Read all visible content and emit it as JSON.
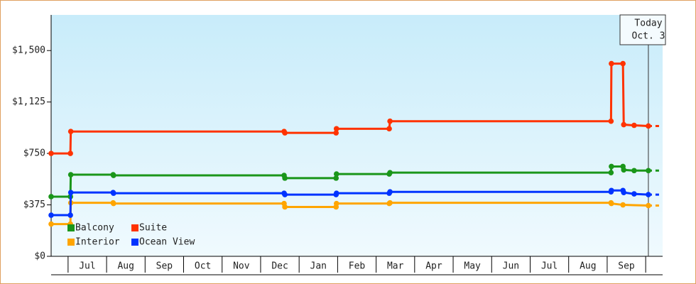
{
  "chart_data": {
    "type": "line",
    "xlim": [
      -0.44,
      15.44
    ],
    "xticks": [
      {
        "value": 0.5,
        "label": "Jul"
      },
      {
        "value": 1.5,
        "label": "Aug"
      },
      {
        "value": 2.5,
        "label": "Sep"
      },
      {
        "value": 3.5,
        "label": "Oct"
      },
      {
        "value": 4.5,
        "label": "Nov"
      },
      {
        "value": 5.5,
        "label": "Dec"
      },
      {
        "value": 6.5,
        "label": "Jan"
      },
      {
        "value": 7.5,
        "label": "Feb"
      },
      {
        "value": 8.5,
        "label": "Mar"
      },
      {
        "value": 9.5,
        "label": "Apr"
      },
      {
        "value": 10.5,
        "label": "May"
      },
      {
        "value": 11.5,
        "label": "Jun"
      },
      {
        "value": 12.5,
        "label": "Jul"
      },
      {
        "value": 13.5,
        "label": "Aug"
      },
      {
        "value": 14.5,
        "label": "Sep"
      }
    ],
    "ylim": [
      0,
      1760
    ],
    "yticks": [
      {
        "value": 0,
        "label": "$0"
      },
      {
        "value": 375,
        "label": "$375"
      },
      {
        "value": 750,
        "label": "$750"
      },
      {
        "value": 1125,
        "label": "$1,125"
      },
      {
        "value": 1500,
        "label": "$1,500"
      }
    ],
    "annotation": {
      "x": 15.07,
      "lines": [
        "Today",
        "Oct. 3"
      ]
    },
    "series": [
      {
        "name": "Balcony",
        "color": "#1a961a",
        "x": [
          -0.44,
          0.06,
          0.07,
          1.17,
          1.18,
          5.61,
          5.63,
          6.96,
          6.97,
          8.34,
          8.36,
          14.1,
          14.11,
          14.41,
          14.43,
          14.7,
          15.07
        ],
        "values": [
          435,
          435,
          595,
          595,
          590,
          590,
          570,
          570,
          600,
          600,
          610,
          610,
          655,
          655,
          630,
          625,
          625
        ]
      },
      {
        "name": "Suite",
        "color": "#ff3300",
        "x": [
          -0.44,
          0.06,
          0.07,
          5.61,
          5.63,
          6.96,
          6.97,
          8.34,
          8.36,
          14.1,
          14.11,
          14.41,
          14.43,
          14.7,
          15.07
        ],
        "values": [
          750,
          750,
          910,
          910,
          900,
          900,
          930,
          930,
          985,
          985,
          1405,
          1405,
          960,
          955,
          950
        ]
      },
      {
        "name": "Interior",
        "color": "#ffa500",
        "x": [
          -0.44,
          0.06,
          0.07,
          1.17,
          1.18,
          5.61,
          5.63,
          6.96,
          6.97,
          8.34,
          8.36,
          14.1,
          14.11,
          14.41,
          15.07
        ],
        "values": [
          235,
          235,
          390,
          390,
          385,
          385,
          360,
          360,
          385,
          385,
          390,
          390,
          385,
          375,
          370
        ]
      },
      {
        "name": "Ocean View",
        "color": "#0033ff",
        "x": [
          -0.44,
          0.06,
          0.07,
          1.17,
          1.18,
          5.61,
          5.63,
          6.96,
          6.97,
          8.34,
          8.36,
          14.1,
          14.11,
          14.41,
          14.43,
          14.7,
          15.07
        ],
        "values": [
          300,
          300,
          465,
          465,
          460,
          460,
          450,
          450,
          460,
          460,
          470,
          470,
          480,
          480,
          465,
          455,
          450
        ]
      }
    ]
  }
}
